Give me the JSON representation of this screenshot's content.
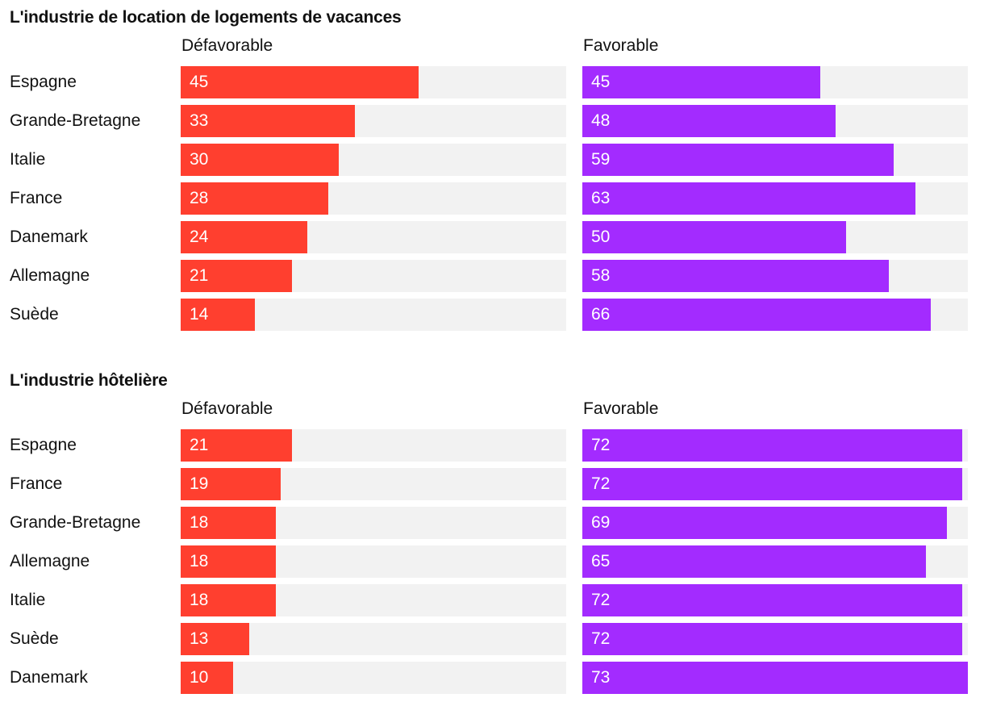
{
  "chart_data": [
    {
      "type": "bar",
      "orientation": "horizontal",
      "title": "L'industrie de location de logements de vacances",
      "categories": [
        "Espagne",
        "Grande-Bretagne",
        "Italie",
        "France",
        "Danemark",
        "Allemagne",
        "Suède"
      ],
      "series": [
        {
          "name": "Défavorable",
          "color": "#ff3f2f",
          "values": [
            45,
            33,
            30,
            28,
            24,
            21,
            14
          ]
        },
        {
          "name": "Favorable",
          "color": "#a32bff",
          "values": [
            45,
            48,
            59,
            63,
            50,
            58,
            66
          ]
        }
      ],
      "xlim": [
        0,
        73
      ],
      "grid": false,
      "legend": "column headers"
    },
    {
      "type": "bar",
      "orientation": "horizontal",
      "title": "L'industrie hôtelière",
      "categories": [
        "Espagne",
        "France",
        "Grande-Bretagne",
        "Allemagne",
        "Italie",
        "Suède",
        "Danemark"
      ],
      "series": [
        {
          "name": "Défavorable",
          "color": "#ff3f2f",
          "values": [
            21,
            19,
            18,
            18,
            18,
            13,
            10
          ]
        },
        {
          "name": "Favorable",
          "color": "#a32bff",
          "values": [
            72,
            72,
            69,
            65,
            72,
            72,
            73
          ]
        }
      ],
      "xlim": [
        0,
        73
      ],
      "grid": false,
      "legend": "column headers"
    }
  ],
  "colors": {
    "unfavorable": "#ff3f2f",
    "favorable": "#a32bff",
    "track": "#f2f2f2",
    "value_text": "#ffffff"
  }
}
